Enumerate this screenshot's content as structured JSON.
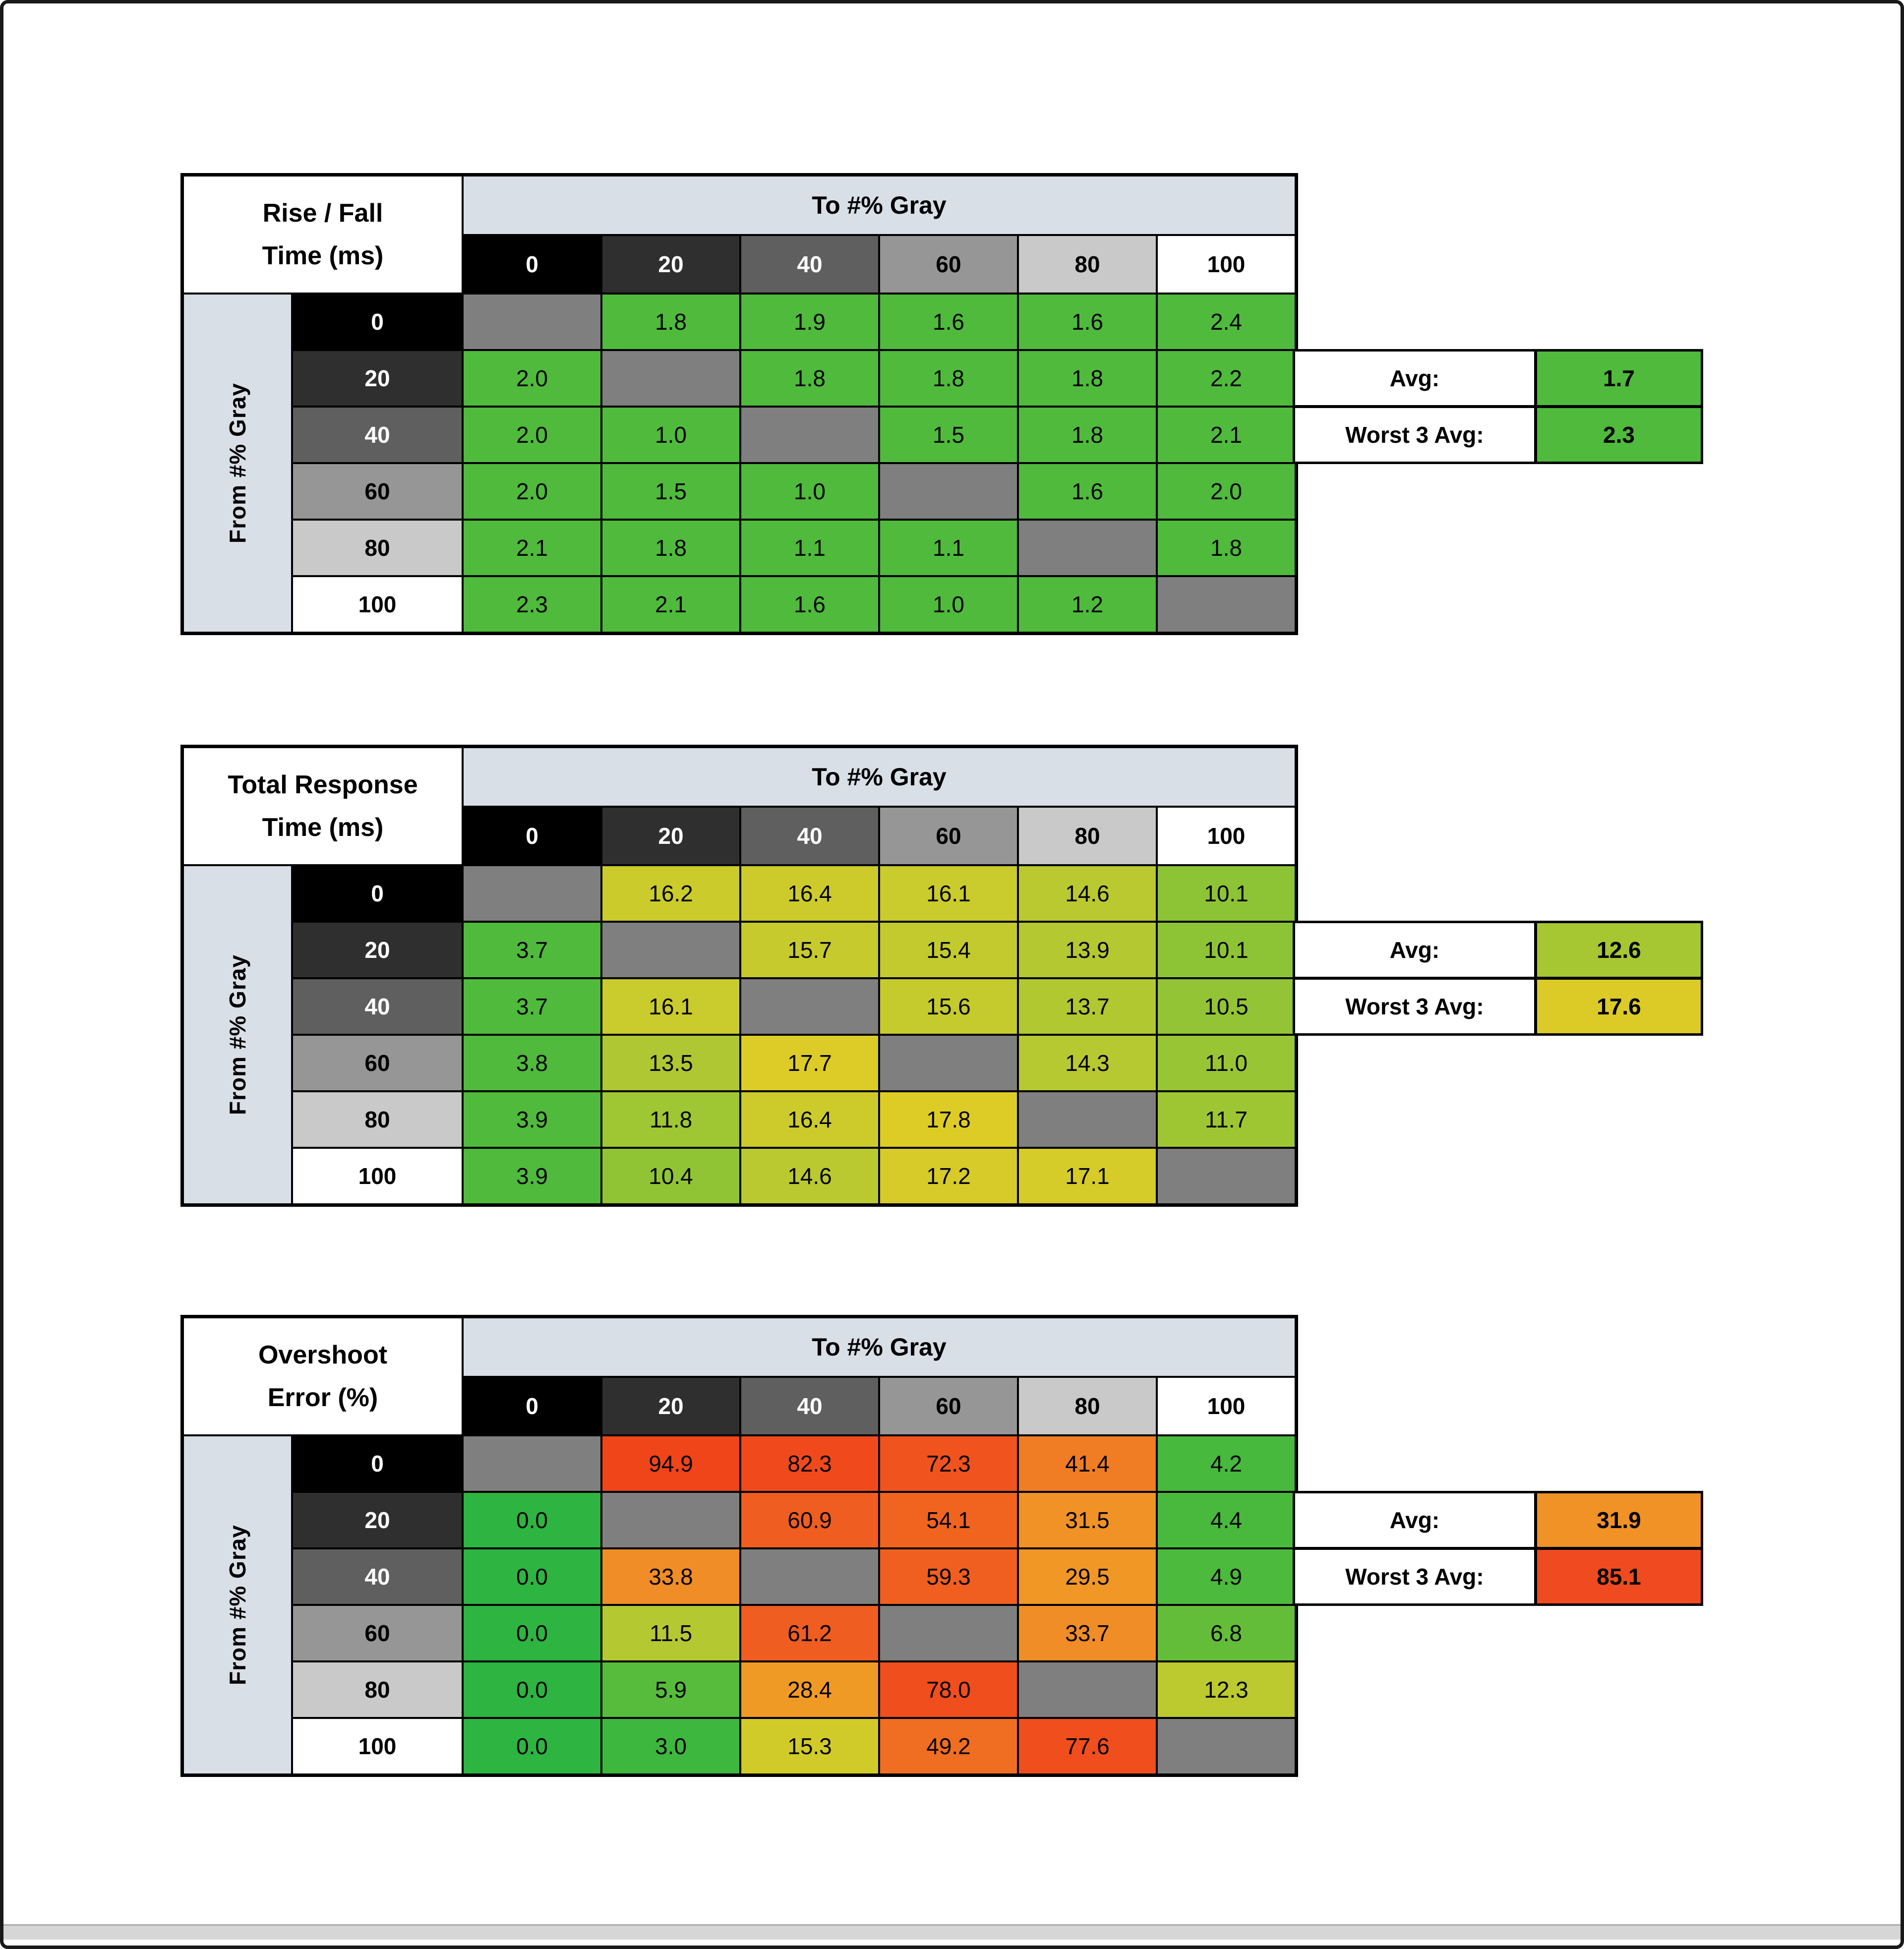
{
  "window": {
    "background": "#ffffff",
    "frame_color": "#191919",
    "scrollbar_track_color": "#d6d6d6"
  },
  "shared": {
    "to_axis_label": "To #% Gray",
    "from_axis_label": "From #% Gray",
    "avg_label": "Avg:",
    "worst_label": "Worst 3 Avg:",
    "header_band_color": "#d9dfe7",
    "diagonal_cell_color": "#7f7f7f",
    "gray_scale": [
      {
        "label": "0",
        "bg": "#000000",
        "fg": "#ffffff"
      },
      {
        "label": "20",
        "bg": "#2f2f2f",
        "fg": "#ffffff"
      },
      {
        "label": "40",
        "bg": "#5f5f5f",
        "fg": "#ffffff"
      },
      {
        "label": "60",
        "bg": "#969696",
        "fg": "#000000"
      },
      {
        "label": "80",
        "bg": "#c9c9c9",
        "fg": "#000000"
      },
      {
        "label": "100",
        "bg": "#ffffff",
        "fg": "#000000"
      }
    ]
  },
  "chart_data": [
    {
      "type": "heatmap",
      "id": "rise-fall-time",
      "title_line1": "Rise / Fall",
      "title_line2": "Time (ms)",
      "x_categories": [
        "0",
        "20",
        "40",
        "60",
        "80",
        "100"
      ],
      "y_categories": [
        "0",
        "20",
        "40",
        "60",
        "80",
        "100"
      ],
      "avg": {
        "label": "Avg:",
        "value": "1.7",
        "color": "#4fba3c"
      },
      "worst": {
        "label": "Worst 3 Avg:",
        "value": "2.3",
        "color": "#4fba3c"
      },
      "rows": [
        [
          null,
          {
            "v": "1.8",
            "c": "#4fba3c"
          },
          {
            "v": "1.9",
            "c": "#4fba3c"
          },
          {
            "v": "1.6",
            "c": "#4fba3c"
          },
          {
            "v": "1.6",
            "c": "#4fba3c"
          },
          {
            "v": "2.4",
            "c": "#4fba3c"
          }
        ],
        [
          {
            "v": "2.0",
            "c": "#4fba3c"
          },
          null,
          {
            "v": "1.8",
            "c": "#4fba3c"
          },
          {
            "v": "1.8",
            "c": "#4fba3c"
          },
          {
            "v": "1.8",
            "c": "#4fba3c"
          },
          {
            "v": "2.2",
            "c": "#4fba3c"
          }
        ],
        [
          {
            "v": "2.0",
            "c": "#4fba3c"
          },
          {
            "v": "1.0",
            "c": "#4fba3c"
          },
          null,
          {
            "v": "1.5",
            "c": "#4fba3c"
          },
          {
            "v": "1.8",
            "c": "#4fba3c"
          },
          {
            "v": "2.1",
            "c": "#4fba3c"
          }
        ],
        [
          {
            "v": "2.0",
            "c": "#4fba3c"
          },
          {
            "v": "1.5",
            "c": "#4fba3c"
          },
          {
            "v": "1.0",
            "c": "#4fba3c"
          },
          null,
          {
            "v": "1.6",
            "c": "#4fba3c"
          },
          {
            "v": "2.0",
            "c": "#4fba3c"
          }
        ],
        [
          {
            "v": "2.1",
            "c": "#4fba3c"
          },
          {
            "v": "1.8",
            "c": "#4fba3c"
          },
          {
            "v": "1.1",
            "c": "#4fba3c"
          },
          {
            "v": "1.1",
            "c": "#4fba3c"
          },
          null,
          {
            "v": "1.8",
            "c": "#4fba3c"
          }
        ],
        [
          {
            "v": "2.3",
            "c": "#4fba3c"
          },
          {
            "v": "2.1",
            "c": "#4fba3c"
          },
          {
            "v": "1.6",
            "c": "#4fba3c"
          },
          {
            "v": "1.0",
            "c": "#4fba3c"
          },
          {
            "v": "1.2",
            "c": "#4fba3c"
          },
          null
        ]
      ]
    },
    {
      "type": "heatmap",
      "id": "total-response-time",
      "title_line1": "Total Response",
      "title_line2": "Time (ms)",
      "x_categories": [
        "0",
        "20",
        "40",
        "60",
        "80",
        "100"
      ],
      "y_categories": [
        "0",
        "20",
        "40",
        "60",
        "80",
        "100"
      ],
      "avg": {
        "label": "Avg:",
        "value": "12.6",
        "color": "#a6c732"
      },
      "worst": {
        "label": "Worst 3 Avg:",
        "value": "17.6",
        "color": "#dccb27"
      },
      "rows": [
        [
          null,
          {
            "v": "16.2",
            "c": "#cbcb2c"
          },
          {
            "v": "16.4",
            "c": "#cccb2b"
          },
          {
            "v": "16.1",
            "c": "#cacb2c"
          },
          {
            "v": "14.6",
            "c": "#bac92f"
          },
          {
            "v": "10.1",
            "c": "#8dc436"
          }
        ],
        [
          {
            "v": "3.7",
            "c": "#4fba3c"
          },
          null,
          {
            "v": "15.7",
            "c": "#c6ca2d"
          },
          {
            "v": "15.4",
            "c": "#c3ca2e"
          },
          {
            "v": "13.9",
            "c": "#b3c831"
          },
          {
            "v": "10.1",
            "c": "#8dc436"
          }
        ],
        [
          {
            "v": "3.7",
            "c": "#4fba3c"
          },
          {
            "v": "16.1",
            "c": "#cacb2c"
          },
          null,
          {
            "v": "15.6",
            "c": "#c5ca2d"
          },
          {
            "v": "13.7",
            "c": "#b1c831"
          },
          {
            "v": "10.5",
            "c": "#92c435"
          }
        ],
        [
          {
            "v": "3.8",
            "c": "#4fba3c"
          },
          {
            "v": "13.5",
            "c": "#afc732"
          },
          {
            "v": "17.7",
            "c": "#ddcc27"
          },
          null,
          {
            "v": "14.3",
            "c": "#b7c930"
          },
          {
            "v": "11.0",
            "c": "#98c534"
          }
        ],
        [
          {
            "v": "3.9",
            "c": "#4fba3c"
          },
          {
            "v": "11.8",
            "c": "#9fc633"
          },
          {
            "v": "16.4",
            "c": "#cccb2b"
          },
          {
            "v": "17.8",
            "c": "#decc26"
          },
          null,
          {
            "v": "11.7",
            "c": "#9ec633"
          }
        ],
        [
          {
            "v": "3.9",
            "c": "#4fba3c"
          },
          {
            "v": "10.4",
            "c": "#90c435"
          },
          {
            "v": "14.6",
            "c": "#bac92f"
          },
          {
            "v": "17.2",
            "c": "#d6cb29"
          },
          {
            "v": "17.1",
            "c": "#d5cb29"
          },
          null
        ]
      ]
    },
    {
      "type": "heatmap",
      "id": "overshoot-error",
      "title_line1": "Overshoot",
      "title_line2": "Error (%)",
      "x_categories": [
        "0",
        "20",
        "40",
        "60",
        "80",
        "100"
      ],
      "y_categories": [
        "0",
        "20",
        "40",
        "60",
        "80",
        "100"
      ],
      "avg": {
        "label": "Avg:",
        "value": "31.9",
        "color": "#f09226"
      },
      "worst": {
        "label": "Worst 3 Avg:",
        "value": "85.1",
        "color": "#f04b20"
      },
      "rows": [
        [
          null,
          {
            "v": "94.9",
            "c": "#f04419"
          },
          {
            "v": "82.3",
            "c": "#f04a1c"
          },
          {
            "v": "72.3",
            "c": "#f0531e"
          },
          {
            "v": "41.4",
            "c": "#f07c24"
          },
          {
            "v": "4.2",
            "c": "#47b93d"
          }
        ],
        [
          {
            "v": "0.0",
            "c": "#2eb441"
          },
          null,
          {
            "v": "60.9",
            "c": "#f05d20"
          },
          {
            "v": "54.1",
            "c": "#f06420"
          },
          {
            "v": "31.5",
            "c": "#f09226"
          },
          {
            "v": "4.4",
            "c": "#48b93d"
          }
        ],
        [
          {
            "v": "0.0",
            "c": "#2eb441"
          },
          {
            "v": "33.8",
            "c": "#f08d26"
          },
          null,
          {
            "v": "59.3",
            "c": "#f05f20"
          },
          {
            "v": "29.5",
            "c": "#f09726"
          },
          {
            "v": "4.9",
            "c": "#4cba3c"
          }
        ],
        [
          {
            "v": "0.0",
            "c": "#2eb441"
          },
          {
            "v": "11.5",
            "c": "#b4c831"
          },
          {
            "v": "61.2",
            "c": "#f05d20"
          },
          null,
          {
            "v": "33.7",
            "c": "#f08d26"
          },
          {
            "v": "6.8",
            "c": "#64bd39"
          }
        ],
        [
          {
            "v": "0.0",
            "c": "#2eb441"
          },
          {
            "v": "5.9",
            "c": "#57bb3b"
          },
          {
            "v": "28.4",
            "c": "#f09a26"
          },
          {
            "v": "78.0",
            "c": "#f04e1d"
          },
          null,
          {
            "v": "12.3",
            "c": "#bcc92f"
          }
        ],
        [
          {
            "v": "0.0",
            "c": "#2eb441"
          },
          {
            "v": "3.0",
            "c": "#3db73e"
          },
          {
            "v": "15.3",
            "c": "#d1cb2a"
          },
          {
            "v": "49.2",
            "c": "#f06e21"
          },
          {
            "v": "77.6",
            "c": "#f04e1d"
          },
          null
        ]
      ]
    }
  ]
}
